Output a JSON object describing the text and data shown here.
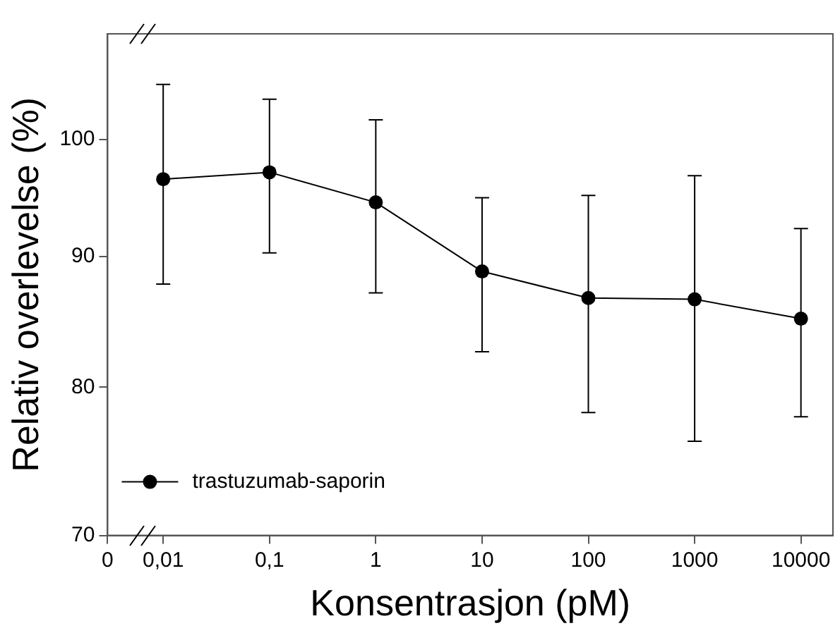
{
  "chart_data": {
    "type": "line",
    "xlabel": "Konsentrasjon (pM)",
    "ylabel": "Relativ overlevelse (%)",
    "x": [
      0.01,
      0.1,
      1,
      10,
      100,
      1000,
      10000
    ],
    "series": [
      {
        "name": "trastuzumab-saporin",
        "color": "#000000",
        "values": [
          96.5,
          97.1,
          94.5,
          88.8,
          86.7,
          86.6,
          85.1
        ],
        "errors": [
          [
            87.8,
            105.1
          ],
          [
            90.3,
            103.7
          ],
          [
            87.1,
            101.8
          ],
          [
            82.6,
            94.9
          ],
          [
            78.2,
            95.1
          ],
          [
            76.2,
            96.8
          ],
          [
            77.9,
            92.3
          ]
        ]
      }
    ],
    "log": "xy",
    "xlim": [
      0.003,
      20000
    ],
    "xticks": [
      {
        "value": 0.003,
        "label": "0"
      },
      {
        "value": 0.01,
        "label": "0,01"
      },
      {
        "value": 0.1,
        "label": "0,1"
      },
      1,
      10,
      100,
      1000,
      10000
    ],
    "ylim": [
      70,
      110
    ],
    "yticks": [
      70,
      80,
      90,
      100
    ],
    "grid": false,
    "legend": "bottom left",
    "marker": "circle",
    "line_style": "solid"
  }
}
